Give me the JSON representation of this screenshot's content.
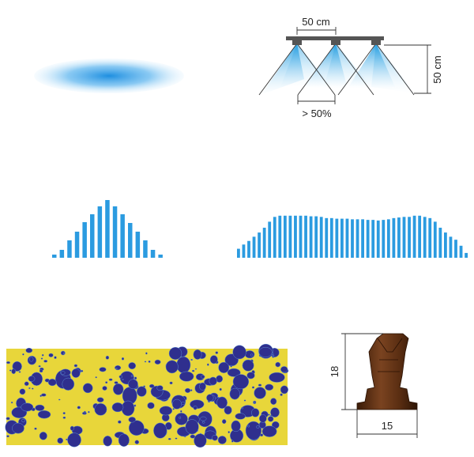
{
  "boom_spacing": "50 cm",
  "boom_height": "50 cm",
  "overlap": "> 50%",
  "nozzle_height": "18",
  "nozzle_width": "15",
  "single_nozzle_profile": {
    "description_values": [
      0.04,
      0.1,
      0.22,
      0.33,
      0.45,
      0.55,
      0.65,
      0.73,
      0.65,
      0.55,
      0.44,
      0.33,
      0.22,
      0.1,
      0.04
    ]
  },
  "overlapped_profile": {
    "description_values": [
      0.15,
      0.22,
      0.28,
      0.35,
      0.42,
      0.5,
      0.6,
      0.68,
      0.7,
      0.7,
      0.7,
      0.7,
      0.7,
      0.7,
      0.69,
      0.69,
      0.68,
      0.66,
      0.66,
      0.65,
      0.65,
      0.65,
      0.64,
      0.64,
      0.64,
      0.63,
      0.63,
      0.62,
      0.63,
      0.64,
      0.66,
      0.67,
      0.68,
      0.68,
      0.7,
      0.7,
      0.68,
      0.66,
      0.6,
      0.5,
      0.42,
      0.35,
      0.3,
      0.2,
      0.08
    ]
  },
  "colors": {
    "spray_blue": "#1e9be0",
    "bar_blue": "#2b9be0",
    "paper_yellow": "#e8d63a",
    "droplet_navy": "#2f2f8e",
    "nozzle_brown": "#5a2e12",
    "boom_gray": "#555555"
  }
}
